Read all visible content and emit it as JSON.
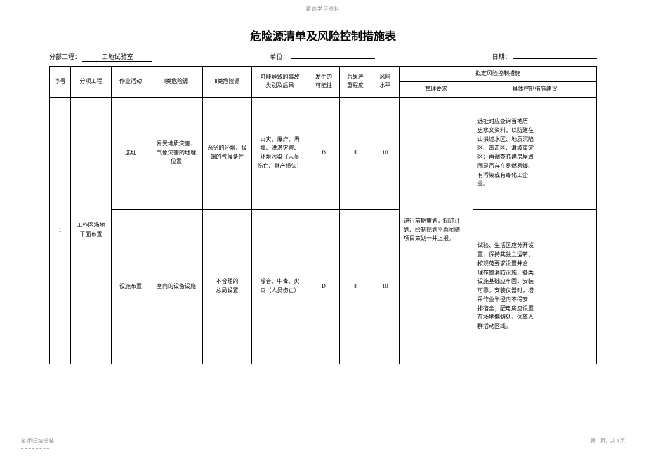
{
  "header_small": "精选学习资料",
  "title": "危险源清单及风险控制措施表",
  "meta": {
    "division_label": "分部工程：",
    "division_value": "工地试验室",
    "unit_label": "单位：",
    "unit_value": "",
    "date_label": "日期：",
    "date_value": ""
  },
  "columns": {
    "seq": "序号",
    "sub": "分项工程",
    "activity": "作业活动",
    "hazard1": "Ⅰ类危险源",
    "hazard2": "Ⅱ类危险源",
    "result": "可能导致的事故\n类别及后果",
    "possibility": "发生的\n可能性",
    "severity": "后果严\n重程度",
    "risk_level": "风险\n水平",
    "control_group": "拟定风险控制措施",
    "mgmt": "管理要求",
    "suggestion": "具体控制措施建议"
  },
  "rows": [
    {
      "seq": "1",
      "sub": "工作区场地\n平面布置",
      "activity": "选址",
      "hazard1": "易受地质灾害、\n气象灾害的地理\n位置",
      "hazard2": "恶劣的环境、极\n端的气候条件",
      "result": "火灾、爆炸、坍\n塌、洪涝灾害、\n环境污染（人员\n伤亡、财产损失）",
      "possibility": "D",
      "severity": "Ⅱ",
      "risk_level": "10",
      "mgmt": "进行前期策划，制订计\n划、绘制规划平面图随\n项目策划一并上报。",
      "suggestion": "选址时应查询当地历\n史水文资料，以防建在\n山洪过水区、地质沉陷\n区、雷击区、滑坡重灾\n区；再调查临建房屋周\n围是否存在易燃易爆、\n有污染或有毒化工企\n业。"
    },
    {
      "activity": "设施布置",
      "hazard1": "室内的设备设施",
      "hazard2": "不合理的\n总局设置",
      "result": "噪音、中毒、火\n灾（人员伤亡）",
      "possibility": "D",
      "severity": "Ⅱ",
      "risk_level": "10",
      "suggestion": "试验、生活区应分开设\n置，保持其独立运转；\n按规范要求设置并合\n理布置消防设施，各类\n设施基础应牢固，安装\n可靠。安装仪器时，塔\n吊作业半径内不得安\n排宿舍；配电房应设置\n在场地偏僻处，远离人\n群活动区域。"
    }
  ],
  "footer": {
    "left": "名师归纳总结",
    "right": "第 1 页，共 4 页"
  }
}
